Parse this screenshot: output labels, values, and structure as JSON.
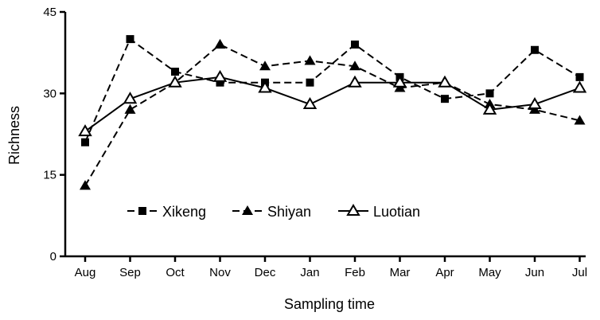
{
  "chart_data": {
    "type": "line",
    "xlabel": "Sampling time",
    "ylabel": "Richness",
    "ylim": [
      0,
      45
    ],
    "yticks": [
      0,
      15,
      30,
      45
    ],
    "grid": false,
    "legend_position": "bottom-left",
    "categories": [
      "Aug",
      "Sep",
      "Oct",
      "Nov",
      "Dec",
      "Jan",
      "Feb",
      "Mar",
      "Apr",
      "May",
      "Jun",
      "Jul"
    ],
    "series": [
      {
        "name": "Xikeng",
        "marker": "square-filled",
        "line": "dashed",
        "values": [
          21,
          40,
          34,
          32,
          32,
          32,
          39,
          33,
          29,
          30,
          38,
          33
        ]
      },
      {
        "name": "Shiyan",
        "marker": "triangle-filled",
        "line": "dashed",
        "values": [
          13,
          27,
          32,
          39,
          35,
          36,
          35,
          31,
          32,
          28,
          27,
          25
        ]
      },
      {
        "name": "Luotian",
        "marker": "triangle-open",
        "line": "solid",
        "values": [
          23,
          29,
          32,
          33,
          31,
          28,
          32,
          32,
          32,
          27,
          28,
          31
        ]
      }
    ],
    "color": "#000000"
  }
}
